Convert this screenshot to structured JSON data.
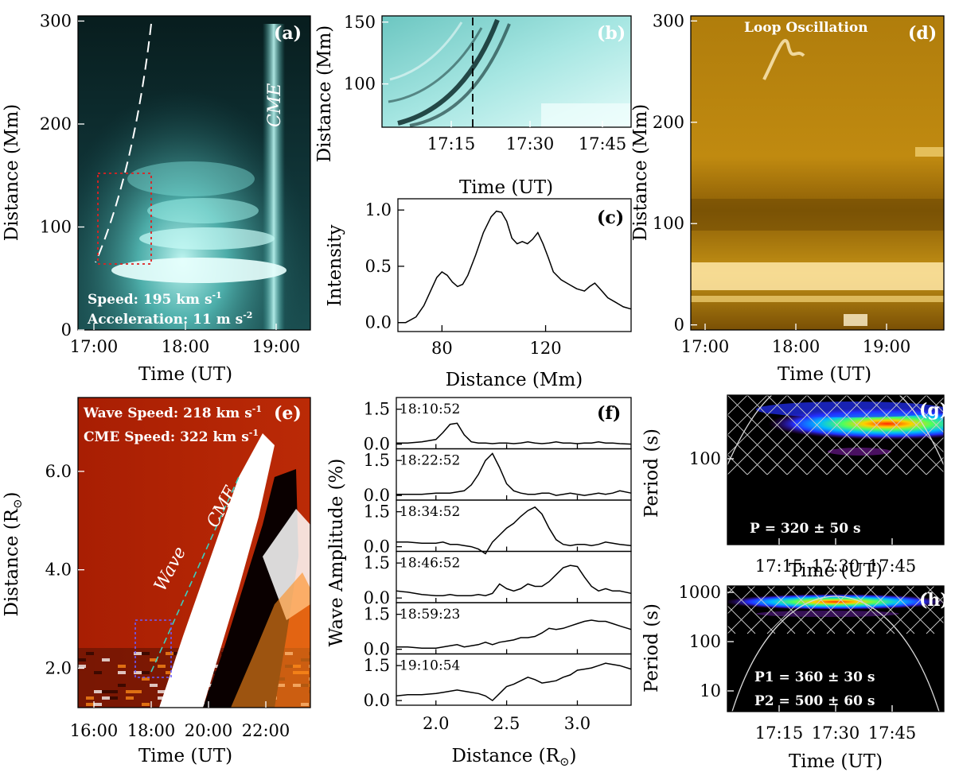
{
  "chart_data": [
    {
      "id": "a",
      "panel_label": "(a)",
      "type": "heatmap",
      "xlabel": "Time (UT)",
      "ylabel": "Distance (Mm)",
      "xticks": [
        "17:00",
        "18:00",
        "19:00"
      ],
      "yticks": [
        "0",
        "100",
        "200",
        "300"
      ],
      "ylim": [
        0,
        305
      ],
      "annotations": {
        "cme": "CME",
        "speed": "Speed: 195 km s",
        "speed_unit_exp": "-1",
        "acceleration": "Acceleration: 11 m s",
        "acceleration_unit_exp": "-2"
      },
      "colors": {
        "bg": "#0b2224",
        "bright": "#bffaf6",
        "mid": "#3fb0ab"
      }
    },
    {
      "id": "b",
      "panel_label": "(b)",
      "type": "heatmap",
      "xlabel": "Time (UT)",
      "ylabel": "Distance (Mm)",
      "xticks": [
        "17:15",
        "17:30",
        "17:45"
      ],
      "yticks": [
        "100",
        "150"
      ],
      "ylim": [
        65,
        155
      ],
      "colors": {
        "bg": "#7ecfca",
        "light": "#d6f7f4",
        "dark": "#0d2b2b"
      }
    },
    {
      "id": "c",
      "panel_label": "(c)",
      "type": "line",
      "xlabel": "Distance (Mm)",
      "ylabel": "Intensity",
      "xticks": [
        "80",
        "120"
      ],
      "yticks": [
        "0.0",
        "0.5",
        "1.0"
      ],
      "xlim": [
        63,
        153
      ],
      "ylim": [
        -0.08,
        1.1
      ],
      "x": [
        63,
        66,
        70,
        73,
        76,
        78,
        80,
        82,
        84,
        86,
        88,
        90,
        93,
        96,
        99,
        101,
        103,
        105,
        107,
        109,
        111,
        113,
        115,
        117,
        119,
        121,
        123,
        126,
        129,
        132,
        135,
        137,
        139,
        141,
        144,
        147,
        150,
        153
      ],
      "values": [
        0.0,
        0.0,
        0.05,
        0.15,
        0.3,
        0.4,
        0.45,
        0.42,
        0.36,
        0.32,
        0.34,
        0.42,
        0.6,
        0.8,
        0.94,
        0.99,
        0.98,
        0.9,
        0.75,
        0.7,
        0.72,
        0.7,
        0.74,
        0.8,
        0.7,
        0.58,
        0.45,
        0.38,
        0.34,
        0.3,
        0.28,
        0.32,
        0.35,
        0.3,
        0.22,
        0.18,
        0.14,
        0.12
      ]
    },
    {
      "id": "d",
      "panel_label": "(d)",
      "type": "heatmap",
      "title": "Loop Oscillation",
      "xlabel": "Time (UT)",
      "ylabel": "Distance (Mm)",
      "xticks": [
        "17:00",
        "18:00",
        "19:00"
      ],
      "yticks": [
        "0",
        "100",
        "200",
        "300"
      ],
      "ylim": [
        -5,
        305
      ],
      "colors": {
        "bg": "#9a6b08",
        "mid": "#c48d10",
        "bright": "#ffe8a8"
      }
    },
    {
      "id": "e",
      "panel_label": "(e)",
      "type": "heatmap",
      "xlabel": "Time (UT)",
      "ylabel": "Distance (R",
      "ylabel_symbol": "⊙",
      "ylabel_close": ")",
      "xticks": [
        "16:00",
        "18:00",
        "20:00",
        "22:00"
      ],
      "yticks": [
        "2.0",
        "4.0",
        "6.0"
      ],
      "ylim": [
        1.2,
        7.5
      ],
      "annotations": {
        "wave_speed": "Wave Speed: 218 km s",
        "wave_speed_exp": "-1",
        "cme_speed": "CME Speed: 322 km s",
        "cme_speed_exp": "-1",
        "cme": "CME",
        "wave": "Wave"
      },
      "colors": {
        "bg": "#b32204",
        "light": "#ffffff",
        "dark": "#000000",
        "orange": "#ff8c1a"
      }
    },
    {
      "id": "f",
      "panel_label": "(f)",
      "type": "line",
      "xlabel": "Distance (R",
      "xlabel_symbol": "⊙",
      "xlabel_close": ")",
      "ylabel": "Wave Amplitude (%)",
      "xticks": [
        "2.0",
        "2.5",
        "3.0"
      ],
      "yticks": [
        "0.0",
        "1.5"
      ],
      "xlim": [
        1.72,
        3.38
      ],
      "ylim": [
        -0.2,
        2.0
      ],
      "x": [
        1.72,
        1.8,
        1.9,
        2.0,
        2.05,
        2.1,
        2.15,
        2.2,
        2.25,
        2.3,
        2.35,
        2.4,
        2.45,
        2.5,
        2.55,
        2.6,
        2.65,
        2.7,
        2.75,
        2.8,
        2.85,
        2.9,
        2.95,
        3.0,
        3.05,
        3.1,
        3.15,
        3.2,
        3.25,
        3.3,
        3.38
      ],
      "series": [
        {
          "name": "18:10:52",
          "values": [
            0.05,
            0.05,
            0.1,
            0.2,
            0.5,
            0.85,
            0.9,
            0.4,
            0.1,
            0.05,
            0.05,
            0.02,
            0.05,
            0.05,
            0.02,
            0.05,
            0.1,
            0.05,
            0.02,
            0.05,
            0.1,
            0.05,
            0.05,
            0.02,
            0.05,
            0.05,
            0.1,
            0.05,
            0.05,
            0.02,
            0.0
          ]
        },
        {
          "name": "18:22:52",
          "values": [
            0.05,
            0.05,
            0.05,
            0.1,
            0.1,
            0.1,
            0.15,
            0.2,
            0.45,
            0.9,
            1.5,
            1.8,
            1.2,
            0.5,
            0.2,
            0.1,
            0.05,
            0.05,
            0.1,
            0.1,
            0.0,
            0.05,
            0.1,
            0.05,
            0.0,
            0.05,
            0.1,
            0.05,
            0.1,
            0.2,
            0.1
          ]
        },
        {
          "name": "18:34:52",
          "values": [
            0.2,
            0.2,
            0.15,
            0.15,
            0.2,
            0.1,
            0.1,
            0.05,
            0.0,
            -0.1,
            -0.3,
            0.2,
            0.5,
            0.8,
            1.0,
            1.3,
            1.55,
            1.7,
            1.4,
            0.8,
            0.3,
            0.1,
            0.05,
            0.1,
            0.1,
            0.05,
            0.1,
            0.2,
            0.15,
            0.1,
            0.05
          ]
        },
        {
          "name": "18:46:52",
          "values": [
            0.3,
            0.25,
            0.15,
            0.1,
            0.1,
            0.15,
            0.1,
            0.1,
            0.1,
            0.15,
            0.1,
            0.2,
            0.6,
            0.4,
            0.3,
            0.4,
            0.6,
            0.5,
            0.5,
            0.7,
            1.0,
            1.3,
            1.4,
            1.35,
            0.9,
            0.5,
            0.3,
            0.4,
            0.3,
            0.3,
            0.2
          ]
        },
        {
          "name": "18:59:23",
          "values": [
            0.1,
            0.1,
            0.05,
            0.05,
            0.1,
            0.15,
            0.2,
            0.1,
            0.15,
            0.2,
            0.3,
            0.2,
            0.3,
            0.35,
            0.4,
            0.5,
            0.5,
            0.55,
            0.7,
            0.9,
            0.85,
            0.9,
            1.0,
            1.1,
            1.2,
            1.25,
            1.2,
            1.2,
            1.1,
            1.0,
            0.85
          ]
        },
        {
          "name": "19:10:54",
          "values": [
            0.2,
            0.25,
            0.25,
            0.3,
            0.35,
            0.4,
            0.45,
            0.4,
            0.35,
            0.3,
            0.2,
            0.0,
            0.3,
            0.6,
            0.7,
            0.85,
            1.0,
            0.9,
            0.75,
            0.8,
            0.85,
            1.0,
            1.1,
            1.3,
            1.35,
            1.4,
            1.5,
            1.6,
            1.55,
            1.5,
            1.35
          ]
        }
      ]
    },
    {
      "id": "g",
      "panel_label": "(g)",
      "type": "heatmap",
      "xlabel": "Time (UT)",
      "ylabel": "Period (s)",
      "xticks": [
        "17:15",
        "17:30",
        "17:45"
      ],
      "yticks": [
        "100"
      ],
      "annotations": {
        "period": "P = 320 ± 50 s"
      },
      "colors": {
        "bg": "#000000"
      }
    },
    {
      "id": "h",
      "panel_label": "(h)",
      "type": "heatmap",
      "xlabel": "Time (UT)",
      "ylabel": "Period (s)",
      "xticks": [
        "17:15",
        "17:30",
        "17:45"
      ],
      "yticks": [
        "10",
        "100",
        "1000"
      ],
      "annotations": {
        "p1": "P1 = 360 ± 30 s",
        "p2": "P2 = 500 ± 60 s"
      },
      "colors": {
        "bg": "#000000"
      }
    }
  ]
}
